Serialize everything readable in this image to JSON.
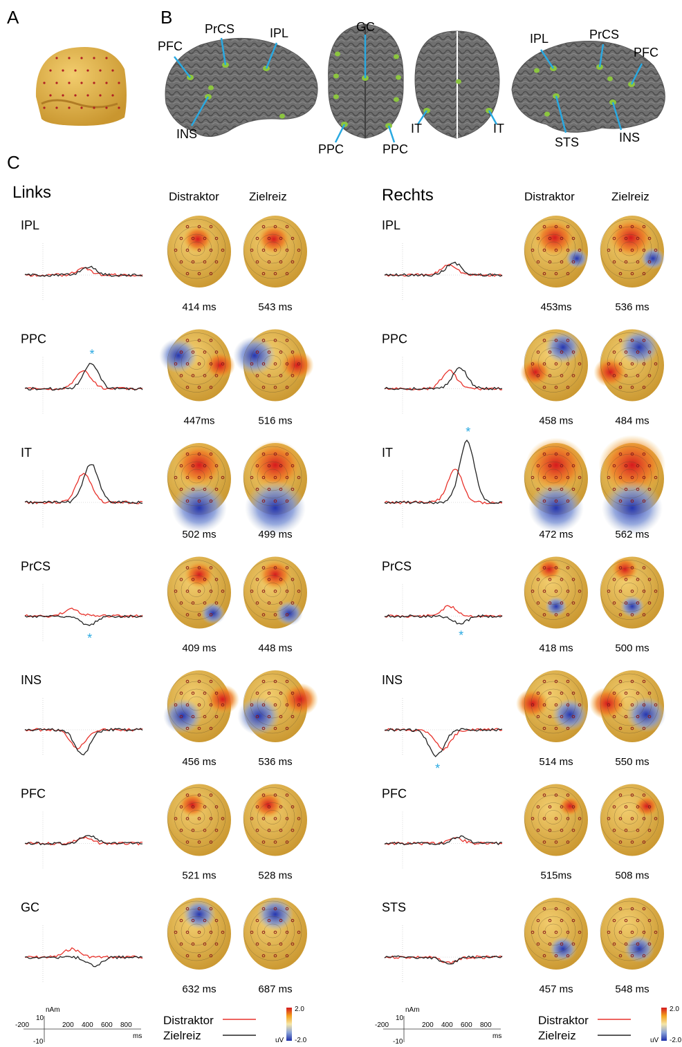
{
  "panels": {
    "a": "A",
    "b": "B",
    "c": "C"
  },
  "brain_labels": {
    "left_lateral": [
      "PFC",
      "PrCS",
      "IPL",
      "INS"
    ],
    "top": [
      "GC",
      "PPC",
      "PPC"
    ],
    "bottom": [
      "IT",
      "IT"
    ],
    "right_lateral": [
      "IPL",
      "PrCS",
      "PFC",
      "STS",
      "INS"
    ]
  },
  "left": {
    "title": "Links",
    "col1": "Distraktor",
    "col2": "Zielreiz",
    "rows": [
      {
        "region": "IPL",
        "lat1": "414 ms",
        "lat2": "543 ms"
      },
      {
        "region": "PPC",
        "lat1": "447ms",
        "lat2": "516 ms",
        "star": "*"
      },
      {
        "region": "IT",
        "lat1": "502 ms",
        "lat2": "499 ms"
      },
      {
        "region": "PrCS",
        "lat1": "409 ms",
        "lat2": "448 ms",
        "star": "*"
      },
      {
        "region": "INS",
        "lat1": "456 ms",
        "lat2": "536 ms"
      },
      {
        "region": "PFC",
        "lat1": "521 ms",
        "lat2": "528 ms"
      },
      {
        "region": "GC",
        "lat1": "632 ms",
        "lat2": "687 ms"
      }
    ]
  },
  "right": {
    "title": "Rechts",
    "col1": "Distraktor",
    "col2": "Zielreiz",
    "rows": [
      {
        "region": "IPL",
        "lat1": "453ms",
        "lat2": "536 ms"
      },
      {
        "region": "PPC",
        "lat1": "458 ms",
        "lat2": "484 ms"
      },
      {
        "region": "IT",
        "lat1": "472 ms",
        "lat2": "562 ms",
        "star": "*"
      },
      {
        "region": "PrCS",
        "lat1": "418 ms",
        "lat2": "500 ms",
        "star": "*"
      },
      {
        "region": "INS",
        "lat1": "514 ms",
        "lat2": "550 ms",
        "star": "*"
      },
      {
        "region": "PFC",
        "lat1": "515ms",
        "lat2": "508 ms"
      },
      {
        "region": "STS",
        "lat1": "457 ms",
        "lat2": "548 ms"
      }
    ]
  },
  "scale": {
    "unit_y": "nAm",
    "y_max": "10",
    "y_min": "-10",
    "x_ticks": [
      "-200",
      "200",
      "400",
      "600",
      "800"
    ],
    "unit_x": "ms"
  },
  "legend": {
    "distraktor": "Distraktor",
    "zielreiz": "Zielreiz"
  },
  "colorbar": {
    "max": "2.0",
    "min": "-2.0",
    "unit": "uV"
  },
  "colors": {
    "distraktor": "#e8312a",
    "zielreiz": "#222222",
    "callout": "#29a9e1",
    "source": "#8cc63f",
    "head": "#e9b94c",
    "brain": "#6d6d6d"
  }
}
